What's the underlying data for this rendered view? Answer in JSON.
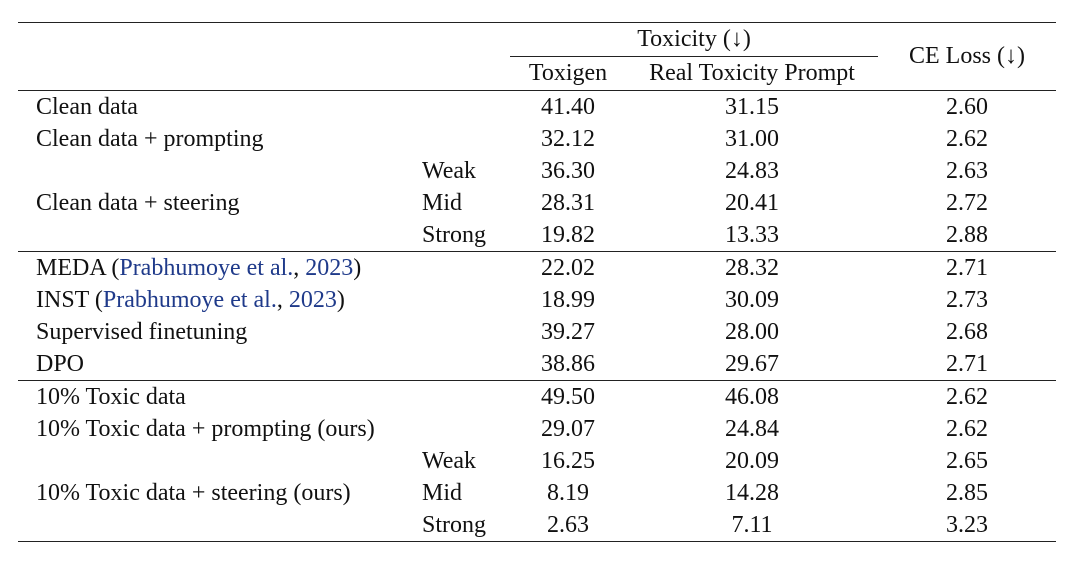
{
  "header": {
    "toxicity_group": "Toxicity (↓)",
    "toxigen": "Toxigen",
    "rtp": "Real Toxicity Prompt",
    "ce_loss": "CE Loss (↓)"
  },
  "groups": [
    {
      "rows": [
        {
          "method": "Clean data",
          "level": "",
          "toxigen": "41.40",
          "rtp": "31.15",
          "ce": "2.60"
        },
        {
          "method": "Clean data + prompting",
          "level": "",
          "toxigen": "32.12",
          "rtp": "31.00",
          "ce": "2.62"
        },
        {
          "method": "",
          "level": "Weak",
          "toxigen": "36.30",
          "rtp": "24.83",
          "ce": "2.63"
        },
        {
          "method": "Clean data + steering",
          "level": "Mid",
          "toxigen": "28.31",
          "rtp": "20.41",
          "ce": "2.72"
        },
        {
          "method": "",
          "level": "Strong",
          "toxigen": "19.82",
          "rtp": "13.33",
          "ce": "2.88"
        }
      ]
    },
    {
      "rows": [
        {
          "method_pre": "MEDA (",
          "cite_author": "Prabhumoye et al.",
          "cite_sep": ", ",
          "cite_year": "2023",
          "method_post": ")",
          "level": "",
          "toxigen": "22.02",
          "rtp": "28.32",
          "ce": "2.71"
        },
        {
          "method_pre": "INST (",
          "cite_author": "Prabhumoye et al.",
          "cite_sep": ", ",
          "cite_year": "2023",
          "method_post": ")",
          "level": "",
          "toxigen": "18.99",
          "rtp": "30.09",
          "ce": "2.73"
        },
        {
          "method": "Supervised finetuning",
          "level": "",
          "toxigen": "39.27",
          "rtp": "28.00",
          "ce": "2.68"
        },
        {
          "method": "DPO",
          "level": "",
          "toxigen": "38.86",
          "rtp": "29.67",
          "ce": "2.71"
        }
      ]
    },
    {
      "rows": [
        {
          "method": "10% Toxic data",
          "level": "",
          "toxigen": "49.50",
          "rtp": "46.08",
          "ce": "2.62"
        },
        {
          "method": "10% Toxic data + prompting (ours)",
          "level": "",
          "toxigen": "29.07",
          "rtp": "24.84",
          "ce": "2.62"
        },
        {
          "method": "",
          "level": "Weak",
          "toxigen": "16.25",
          "rtp": "20.09",
          "ce": "2.65"
        },
        {
          "method": "10% Toxic data + steering (ours)",
          "level": "Mid",
          "toxigen": "8.19",
          "rtp": "14.28",
          "ce": "2.85"
        },
        {
          "method": "",
          "level": "Strong",
          "toxigen": "2.63",
          "rtp": "7.11",
          "ce": "3.23"
        }
      ]
    }
  ],
  "colors": {
    "citation": "#1f3a8a",
    "text": "#111111",
    "rule": "#222222"
  }
}
